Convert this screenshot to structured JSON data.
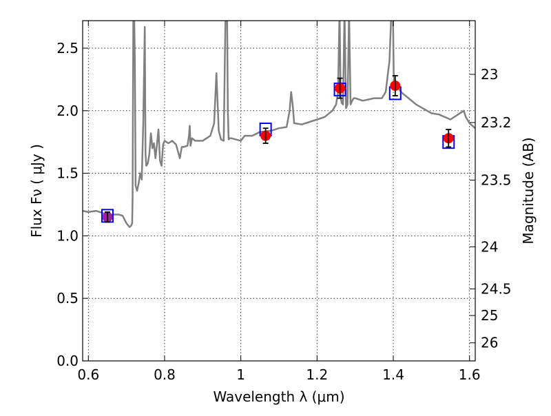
{
  "chart_data": {
    "type": "scatter",
    "xlabel": "Wavelength  λ (μm)",
    "ylabel": "Flux  Fν  ( μJy )",
    "y2label": "Magnitude (AB)",
    "xlim": [
      0.585,
      1.615
    ],
    "ylim": [
      0.0,
      2.72
    ],
    "x_ticks": [
      0.6,
      0.8,
      1.0,
      1.2,
      1.4,
      1.6
    ],
    "x_tick_labels": [
      "0.6",
      "0.8",
      "1",
      "1.2",
      "1.4",
      "1.6"
    ],
    "y_ticks": [
      0.0,
      0.5,
      1.0,
      1.5,
      2.0,
      2.5
    ],
    "y_tick_labels": [
      "0.0",
      "0.5",
      "1.0",
      "1.5",
      "2.0",
      "2.5"
    ],
    "y2_ticks": [
      23,
      23.2,
      23.5,
      24,
      24.5,
      25,
      26
    ],
    "y2_tick_labels": [
      "23",
      "23.2",
      "23.5",
      "24",
      "24.5",
      "25",
      "26"
    ],
    "grid": true,
    "colors": {
      "spectrum": "#808080",
      "model_box": "#0000ff",
      "observed": "#ff0000",
      "observed_first": "#9b1fa0",
      "errorbar": "#000000"
    },
    "series": [
      {
        "type": "line",
        "x": [
          0.585,
          0.6,
          0.62,
          0.64,
          0.66,
          0.68,
          0.69,
          0.7,
          0.708,
          0.712,
          0.715,
          0.716,
          0.718,
          0.72,
          0.722,
          0.724,
          0.728,
          0.732,
          0.736,
          0.74,
          0.744,
          0.748,
          0.75,
          0.752,
          0.756,
          0.76,
          0.764,
          0.768,
          0.772,
          0.776,
          0.78,
          0.784,
          0.788,
          0.792,
          0.796,
          0.8,
          0.81,
          0.82,
          0.83,
          0.84,
          0.845,
          0.85,
          0.86,
          0.864,
          0.866,
          0.868,
          0.872,
          0.88,
          0.9,
          0.92,
          0.93,
          0.936,
          0.942,
          0.948,
          0.955,
          0.96,
          0.964,
          0.966,
          0.968,
          0.971,
          0.975,
          1.0,
          1.01,
          1.03,
          1.05,
          1.08,
          1.1,
          1.12,
          1.128,
          1.132,
          1.136,
          1.14,
          1.16,
          1.2,
          1.22,
          1.24,
          1.25,
          1.255,
          1.259,
          1.262,
          1.265,
          1.268,
          1.272,
          1.276,
          1.28,
          1.284,
          1.288,
          1.292,
          1.296,
          1.3,
          1.32,
          1.35,
          1.37,
          1.38,
          1.39,
          1.395,
          1.399,
          1.401,
          1.404,
          1.41,
          1.42,
          1.44,
          1.46,
          1.5,
          1.52,
          1.55,
          1.57,
          1.585,
          1.59,
          1.6,
          1.615
        ],
        "y": [
          1.2,
          1.19,
          1.2,
          1.18,
          1.17,
          1.17,
          1.16,
          1.1,
          1.07,
          1.08,
          1.1,
          1.3,
          2.8,
          2.8,
          2.4,
          1.4,
          1.36,
          1.42,
          1.5,
          1.45,
          1.9,
          2.67,
          1.65,
          1.56,
          1.58,
          1.65,
          1.82,
          1.7,
          1.74,
          1.62,
          1.73,
          1.85,
          1.6,
          1.56,
          1.73,
          1.76,
          1.74,
          1.76,
          1.73,
          1.62,
          1.71,
          1.71,
          1.72,
          1.8,
          1.88,
          1.72,
          1.78,
          1.76,
          1.76,
          1.8,
          1.9,
          2.3,
          1.84,
          1.77,
          1.76,
          2.8,
          2.8,
          2.0,
          1.77,
          1.78,
          1.78,
          1.76,
          1.8,
          1.8,
          1.83,
          1.84,
          1.86,
          1.87,
          2.0,
          2.15,
          2.05,
          1.9,
          1.89,
          1.93,
          1.95,
          2.0,
          2.05,
          2.15,
          2.8,
          2.1,
          2.06,
          2.05,
          2.8,
          2.02,
          2.05,
          2.8,
          2.05,
          2.08,
          2.1,
          2.1,
          2.08,
          2.1,
          2.1,
          2.15,
          2.4,
          2.8,
          2.8,
          2.3,
          2.2,
          2.2,
          2.15,
          2.1,
          2.05,
          1.98,
          1.97,
          1.93,
          1.97,
          2.0,
          1.95,
          1.9,
          1.86
        ]
      },
      {
        "type": "model_boxes",
        "x": [
          0.65,
          1.065,
          1.26,
          1.405,
          1.545
        ],
        "y": [
          1.16,
          1.85,
          2.17,
          2.14,
          1.75
        ]
      },
      {
        "type": "observed",
        "x": [
          0.65,
          1.065,
          1.26,
          1.405,
          1.545
        ],
        "y": [
          1.15,
          1.8,
          2.18,
          2.2,
          1.78
        ],
        "yerr": [
          0.04,
          0.06,
          0.08,
          0.08,
          0.07
        ]
      }
    ]
  }
}
